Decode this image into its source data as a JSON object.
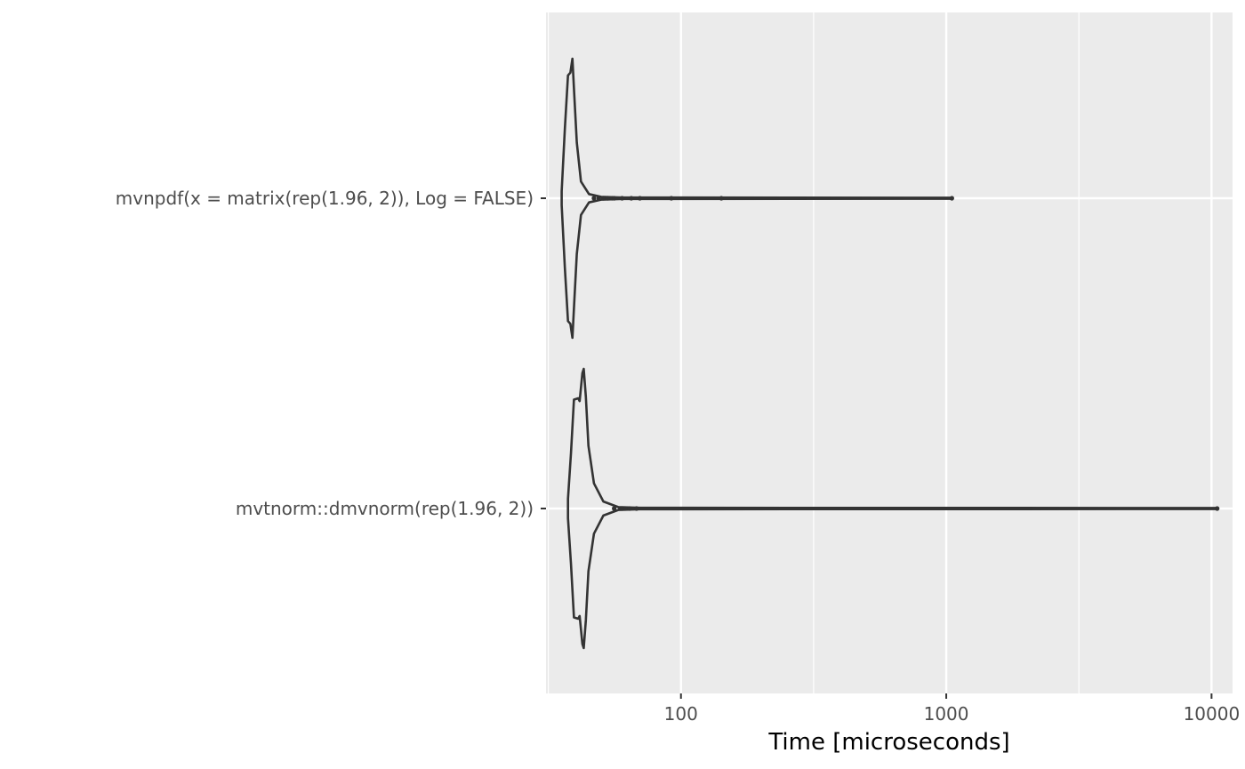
{
  "chart_data": {
    "type": "violin",
    "orientation": "horizontal",
    "title": "",
    "xlabel": "Time [microseconds]",
    "ylabel": "",
    "x_scale": "log10",
    "xlim": [
      31,
      12000
    ],
    "x_ticks": [
      100,
      1000,
      10000
    ],
    "x_tick_labels": [
      "100",
      "1000",
      "10000"
    ],
    "grid": true,
    "legend": "none",
    "colors": {
      "panel_background": "#ebebeb",
      "gridline": "#ffffff",
      "violin_outline": "#333333",
      "tick_label": "#4d4d4d",
      "axis_title": "#000000"
    },
    "categories": [
      "mvnpdf(x = matrix(rep(1.96, 2)), Log = FALSE)",
      "mvtnorm::dmvnorm(rep(1.96, 2))"
    ],
    "series": [
      {
        "category": "mvnpdf(x = matrix(rep(1.96, 2)), Log = FALSE)",
        "min": 35.5,
        "mode": 39,
        "max": 1050,
        "density_profile": [
          [
            35.5,
            0.05
          ],
          [
            36.5,
            0.5
          ],
          [
            37.5,
            0.88
          ],
          [
            38.3,
            0.9
          ],
          [
            39,
            1.0
          ],
          [
            39.6,
            0.75
          ],
          [
            40.5,
            0.4
          ],
          [
            42,
            0.12
          ],
          [
            45,
            0.03
          ],
          [
            50,
            0.01
          ],
          [
            60,
            0.005
          ],
          [
            1050,
            0.004
          ]
        ],
        "outliers": [
          47,
          49,
          51,
          53,
          55,
          56,
          60,
          65,
          70,
          92,
          142,
          1050
        ]
      },
      {
        "category": "mvtnorm::dmvnorm(rep(1.96, 2))",
        "min": 37.5,
        "mode": 43,
        "max": 10500,
        "density_profile": [
          [
            37.5,
            0.07
          ],
          [
            38.5,
            0.4
          ],
          [
            39.5,
            0.78
          ],
          [
            41,
            0.79
          ],
          [
            41.5,
            0.77
          ],
          [
            42.5,
            0.97
          ],
          [
            43,
            1.0
          ],
          [
            43.8,
            0.8
          ],
          [
            44.8,
            0.45
          ],
          [
            47,
            0.18
          ],
          [
            51,
            0.05
          ],
          [
            58,
            0.01
          ],
          [
            70,
            0.005
          ],
          [
            10500,
            0.004
          ]
        ],
        "outliers": [
          56,
          60,
          64,
          68,
          10500
        ]
      }
    ]
  }
}
